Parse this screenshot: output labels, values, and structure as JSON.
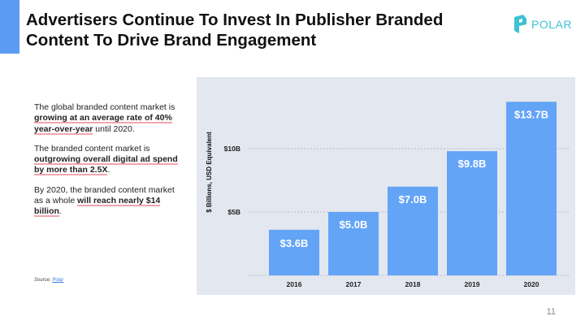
{
  "slide": {
    "title_line1": "Advertisers Continue To Invest In Publisher Branded",
    "title_line2": "Content To Drive Brand Engagement",
    "page_number": "11",
    "accent_color": "#5b9bf5"
  },
  "logo": {
    "text": "POLAR",
    "color": "#3ec1d3",
    "icon": "polar-logo-icon"
  },
  "body": {
    "p1_a": "The global branded content market is ",
    "p1_b": "growing at an average rate of 40% year-over-year",
    "p1_c": " until 2020.",
    "p2_a": "The branded content market is ",
    "p2_b": "outgrowing overall digital ad spend by more than 2.5X",
    "p2_c": ".",
    "p3_a": "By 2020, the branded content market as a whole ",
    "p3_b": "will reach nearly $14 billion",
    "p3_c": "."
  },
  "source": {
    "label": "Source: ",
    "link": "Polar"
  },
  "chart_data": {
    "type": "bar",
    "categories": [
      "2016",
      "2017",
      "2018",
      "2019",
      "2020"
    ],
    "values": [
      3.6,
      5.0,
      7.0,
      9.8,
      13.7
    ],
    "data_labels": [
      "$3.6B",
      "$5.0B",
      "$7.0B",
      "$9.8B",
      "$13.7B"
    ],
    "ylabel": "$ Billions, USD Equivalent",
    "yticks": [
      5,
      10
    ],
    "ytick_labels": [
      "$5B",
      "$10B"
    ],
    "ylim": [
      0,
      15
    ],
    "grid": true,
    "bar_color": "#63a4f7",
    "background_color": "#e3e7f0"
  }
}
